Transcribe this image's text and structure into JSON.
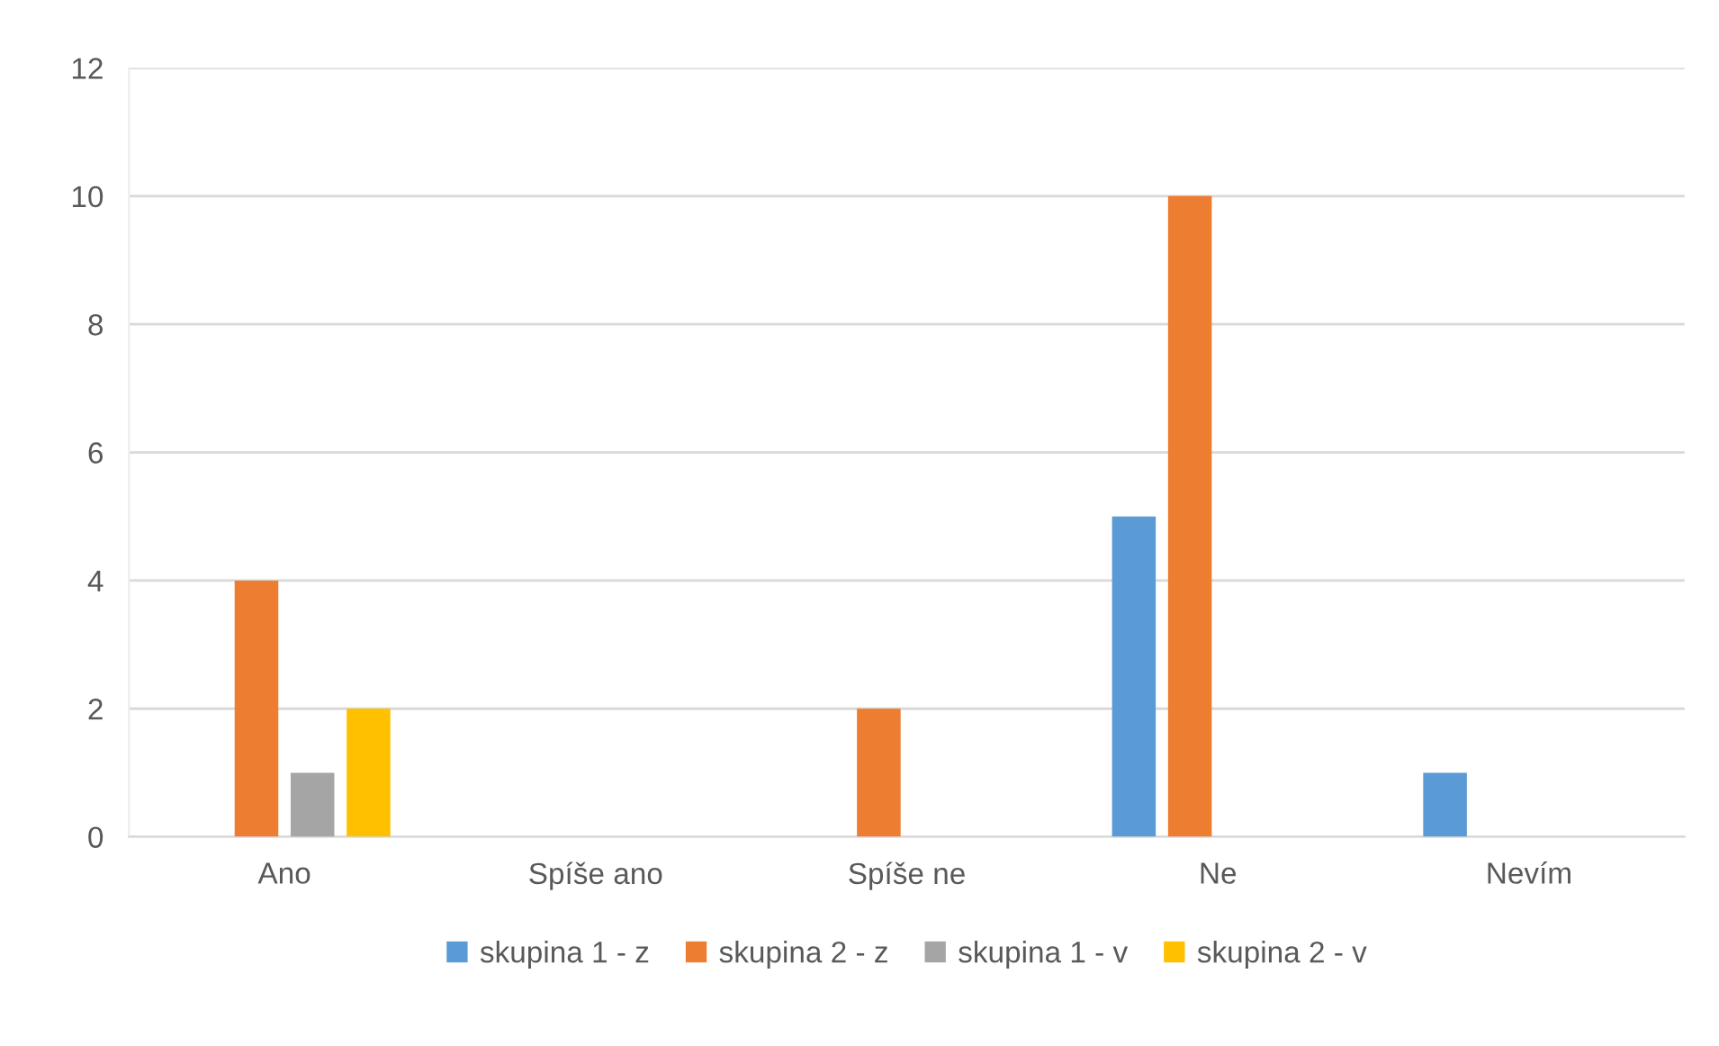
{
  "chart_data": {
    "type": "bar",
    "categories": [
      "Ano",
      "Spíše ano",
      "Spíše ne",
      "Ne",
      "Nevím"
    ],
    "series": [
      {
        "name": "skupina 1 - z",
        "color": "#5b9bd5",
        "values": [
          0,
          0,
          0,
          5,
          1
        ]
      },
      {
        "name": "skupina 2 - z",
        "color": "#ed7d31",
        "values": [
          4,
          0,
          2,
          10,
          0
        ]
      },
      {
        "name": "skupina 1 - v",
        "color": "#a5a5a5",
        "values": [
          1,
          0,
          0,
          0,
          0
        ]
      },
      {
        "name": "skupina 2 - v",
        "color": "#ffc000",
        "values": [
          2,
          0,
          0,
          0,
          0
        ]
      }
    ],
    "ylim": [
      0,
      12
    ],
    "yticks": [
      0,
      2,
      4,
      6,
      8,
      10,
      12
    ],
    "grid": "y",
    "legend": "bottom"
  }
}
